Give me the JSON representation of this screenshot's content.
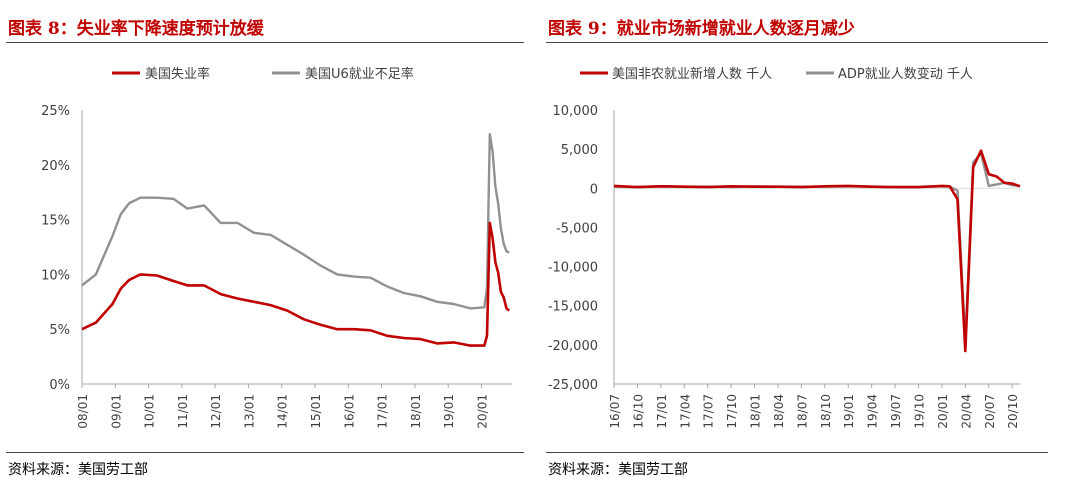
{
  "chart_data": [
    {
      "type": "line",
      "title": "图表 8：失业率下降速度预计放缓",
      "source": "资料来源：美国劳工部",
      "xlabel": "",
      "ylabel": "",
      "ylim": [
        0,
        25
      ],
      "y_ticks": [
        "25%",
        "20%",
        "15%",
        "10%",
        "5%",
        "0%"
      ],
      "y_tick_values": [
        25,
        20,
        15,
        10,
        5,
        0
      ],
      "x_ticks": [
        "08/01",
        "09/01",
        "10/01",
        "11/01",
        "12/01",
        "13/01",
        "14/01",
        "15/01",
        "16/01",
        "17/01",
        "18/01",
        "19/01",
        "20/01"
      ],
      "x_range": [
        "2008-01",
        "2020-12"
      ],
      "legend": "top",
      "grid": false,
      "series": [
        {
          "name": "美国失业率",
          "color": "#c00000",
          "x": [
            "2008-01",
            "2008-06",
            "2008-12",
            "2009-03",
            "2009-06",
            "2009-10",
            "2010-04",
            "2010-10",
            "2011-03",
            "2011-09",
            "2012-03",
            "2012-09",
            "2013-03",
            "2013-09",
            "2014-03",
            "2014-09",
            "2015-03",
            "2015-09",
            "2016-03",
            "2016-09",
            "2017-03",
            "2017-09",
            "2018-03",
            "2018-09",
            "2019-03",
            "2019-09",
            "2020-02",
            "2020-03",
            "2020-04",
            "2020-05",
            "2020-06",
            "2020-07",
            "2020-08",
            "2020-09",
            "2020-10",
            "2020-11"
          ],
          "values": [
            5.0,
            5.6,
            7.3,
            8.7,
            9.5,
            10.0,
            9.9,
            9.4,
            9.0,
            9.0,
            8.2,
            7.8,
            7.5,
            7.2,
            6.7,
            5.9,
            5.4,
            5.0,
            5.0,
            4.9,
            4.4,
            4.2,
            4.1,
            3.7,
            3.8,
            3.5,
            3.5,
            4.4,
            14.7,
            13.3,
            11.1,
            10.2,
            8.4,
            7.9,
            6.9,
            6.7
          ]
        },
        {
          "name": "美国U6就业不足率",
          "color": "#919191",
          "x": [
            "2008-01",
            "2008-06",
            "2008-12",
            "2009-03",
            "2009-06",
            "2009-10",
            "2010-04",
            "2010-10",
            "2011-03",
            "2011-09",
            "2012-03",
            "2012-09",
            "2013-03",
            "2013-09",
            "2014-03",
            "2014-09",
            "2015-03",
            "2015-09",
            "2016-03",
            "2016-09",
            "2017-03",
            "2017-09",
            "2018-03",
            "2018-09",
            "2019-03",
            "2019-09",
            "2020-02",
            "2020-03",
            "2020-04",
            "2020-05",
            "2020-06",
            "2020-07",
            "2020-08",
            "2020-09",
            "2020-10",
            "2020-11"
          ],
          "values": [
            9.0,
            10.0,
            13.5,
            15.5,
            16.5,
            17.0,
            17.0,
            16.9,
            16.0,
            16.3,
            14.7,
            14.7,
            13.8,
            13.6,
            12.7,
            11.8,
            10.8,
            10.0,
            9.8,
            9.7,
            8.9,
            8.3,
            8.0,
            7.5,
            7.3,
            6.9,
            7.0,
            8.7,
            22.8,
            21.2,
            18.0,
            16.5,
            14.2,
            12.8,
            12.1,
            12.0
          ]
        }
      ]
    },
    {
      "type": "line",
      "title": "图表 9：就业市场新增就业人数逐月减少",
      "source": "资料来源：美国劳工部",
      "xlabel": "",
      "ylabel": "",
      "ylim": [
        -25000,
        10000
      ],
      "y_ticks": [
        "10,000",
        "5,000",
        "0",
        "-5,000",
        "-10,000",
        "-15,000",
        "-20,000",
        "-25,000"
      ],
      "y_tick_values": [
        10000,
        5000,
        0,
        -5000,
        -10000,
        -15000,
        -20000,
        -25000
      ],
      "x_ticks": [
        "16/07",
        "16/10",
        "17/01",
        "17/04",
        "17/07",
        "17/10",
        "18/01",
        "18/04",
        "18/07",
        "18/10",
        "19/01",
        "19/04",
        "19/07",
        "19/10",
        "20/01",
        "20/04",
        "20/07",
        "20/10"
      ],
      "x_range": [
        "2016-07",
        "2020-11"
      ],
      "legend": "top",
      "grid": false,
      "series": [
        {
          "name": "美国非农就业新增人数 千人",
          "color": "#c00000",
          "x": [
            "2016-07",
            "2016-10",
            "2017-01",
            "2017-04",
            "2017-07",
            "2017-10",
            "2018-01",
            "2018-04",
            "2018-07",
            "2018-10",
            "2019-01",
            "2019-04",
            "2019-07",
            "2019-10",
            "2020-01",
            "2020-02",
            "2020-03",
            "2020-04",
            "2020-05",
            "2020-06",
            "2020-07",
            "2020-08",
            "2020-09",
            "2020-10",
            "2020-11"
          ],
          "values": [
            300,
            150,
            250,
            200,
            150,
            250,
            200,
            200,
            150,
            250,
            300,
            200,
            150,
            150,
            300,
            250,
            -1400,
            -20800,
            2700,
            4800,
            1800,
            1500,
            700,
            600,
            250
          ]
        },
        {
          "name": "ADP就业人数变动 千人",
          "color": "#919191",
          "x": [
            "2016-07",
            "2016-10",
            "2017-01",
            "2017-04",
            "2017-07",
            "2017-10",
            "2018-01",
            "2018-04",
            "2018-07",
            "2018-10",
            "2019-01",
            "2019-04",
            "2019-07",
            "2019-10",
            "2020-01",
            "2020-02",
            "2020-03",
            "2020-04",
            "2020-05",
            "2020-06",
            "2020-07",
            "2020-08",
            "2020-09",
            "2020-10",
            "2020-11"
          ],
          "values": [
            200,
            150,
            250,
            200,
            200,
            150,
            250,
            200,
            200,
            200,
            250,
            200,
            150,
            150,
            250,
            200,
            -300,
            -19500,
            3300,
            4500,
            300,
            500,
            700,
            400,
            300
          ]
        }
      ]
    }
  ]
}
